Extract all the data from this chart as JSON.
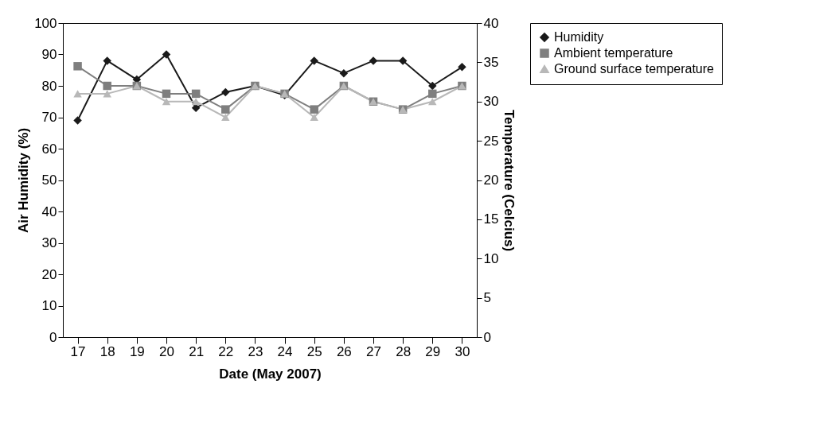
{
  "chart_data": {
    "type": "line",
    "xlabel": "Date (May 2007)",
    "ylabel": "Air Humidity (%)",
    "y2label": "Temperature (Celcius)",
    "categories": [
      "17",
      "18",
      "19",
      "20",
      "21",
      "22",
      "23",
      "24",
      "25",
      "26",
      "27",
      "28",
      "29",
      "30"
    ],
    "ylim": [
      0,
      100
    ],
    "yticks": [
      0,
      10,
      20,
      30,
      40,
      50,
      60,
      70,
      80,
      90,
      100
    ],
    "y2lim": [
      0,
      40
    ],
    "y2ticks": [
      0,
      5,
      10,
      15,
      20,
      25,
      30,
      35,
      40
    ],
    "grid": false,
    "legend": "right",
    "series": [
      {
        "name": "Humidity",
        "color": "#1a1a1a",
        "marker": "diamond",
        "values": [
          69,
          88,
          82,
          90,
          73,
          78,
          80,
          77,
          88,
          84,
          88,
          88,
          80,
          86
        ]
      },
      {
        "name": "Ambient temperature",
        "color": "#7f7f7f",
        "marker": "square",
        "axis": "y2",
        "values": [
          34.5,
          32,
          32,
          31,
          31,
          29,
          32,
          31,
          29,
          32,
          30,
          29,
          31,
          32
        ]
      },
      {
        "name": "Ground surface temperature",
        "color": "#b8b8b8",
        "marker": "triangle",
        "axis": "y2",
        "values": [
          31,
          31,
          32,
          30,
          30,
          28,
          32,
          31,
          28,
          32,
          30,
          29,
          30,
          32
        ]
      }
    ]
  }
}
